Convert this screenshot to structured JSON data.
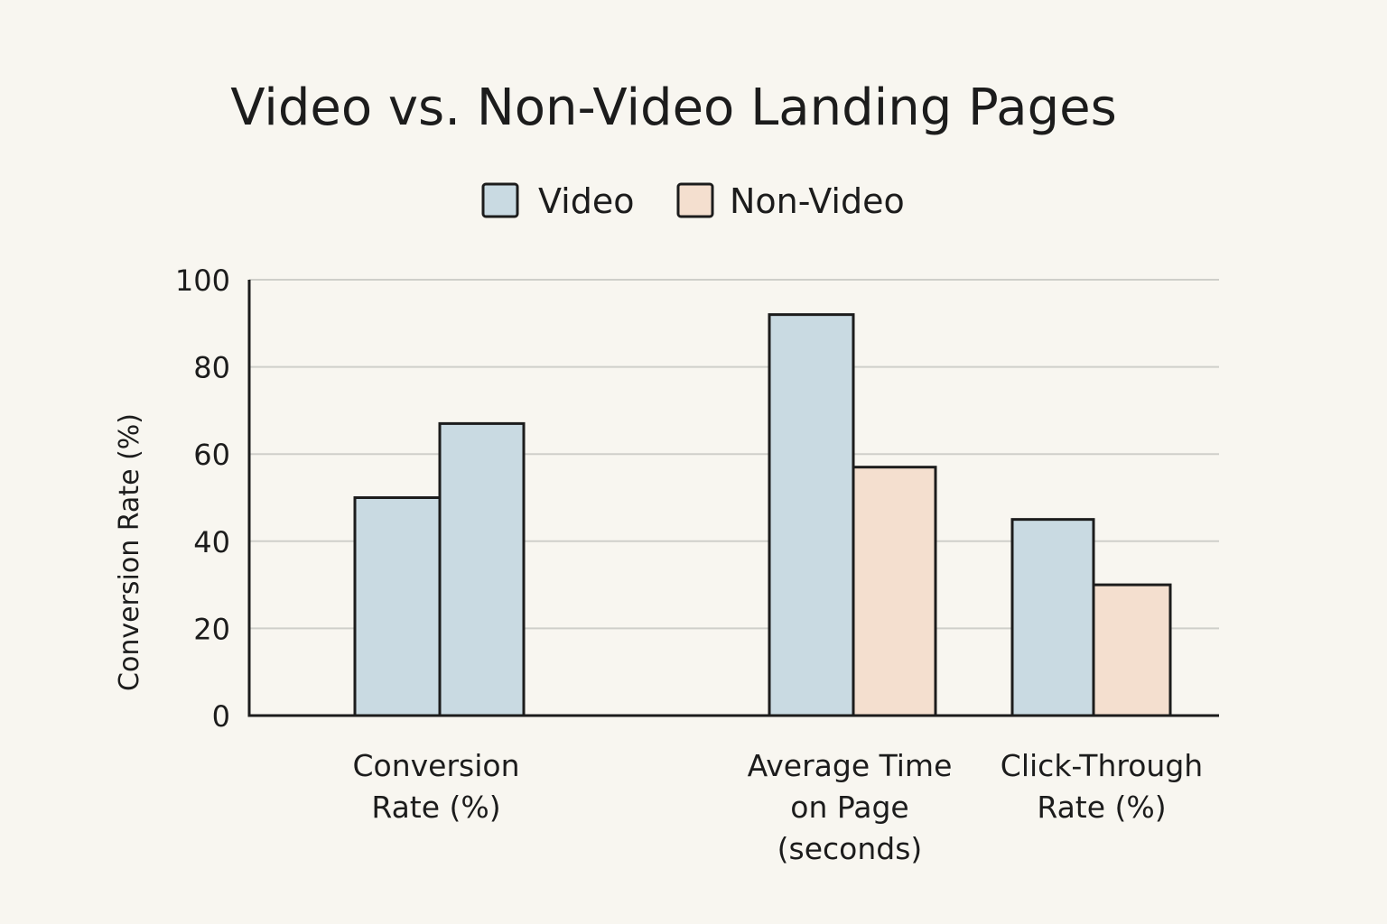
{
  "chart_data": {
    "type": "bar",
    "title": "Video vs. Non-Video Landing Pages",
    "ylabel": "Conversion Rate (%)",
    "xlabel": "",
    "ylim": [
      0,
      100
    ],
    "yticks": [
      0,
      20,
      40,
      60,
      80,
      100
    ],
    "grid": true,
    "legend_position": "top-center",
    "categories": [
      [
        "Conversion",
        "Rate (%)"
      ],
      [
        "Average Time",
        "on Page",
        "(seconds)"
      ],
      [
        "Click-Through",
        "Rate (%)"
      ]
    ],
    "series": [
      {
        "name": "Video",
        "color": "#c9dae2",
        "values": [
          50,
          92,
          45
        ]
      },
      {
        "name": "Non-Video",
        "color": "#f4dfcf",
        "values": [
          67,
          57,
          30
        ]
      }
    ],
    "bar_colors": [
      [
        "#c9dae2",
        "#c9dae2"
      ],
      [
        "#c9dae2",
        "#f4dfcf"
      ],
      [
        "#c9dae2",
        "#f4dfcf"
      ]
    ]
  }
}
